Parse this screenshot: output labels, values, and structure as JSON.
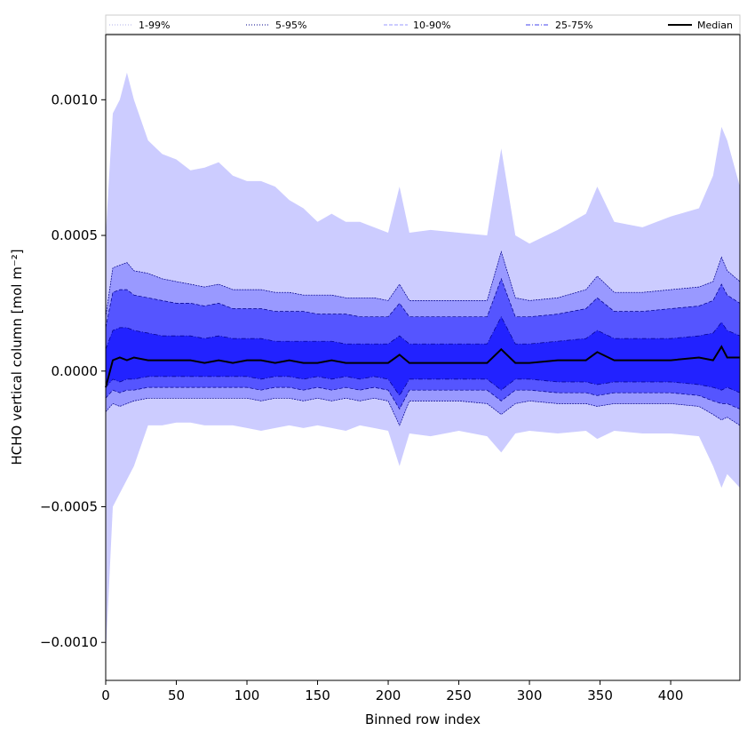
{
  "chart_data": {
    "type": "area",
    "xlabel": "Binned row index",
    "ylabel": "HCHO vertical column [mol m⁻²]",
    "xlim": [
      0,
      449
    ],
    "ylim": [
      -0.00114,
      0.00124
    ],
    "xticks": [
      0,
      50,
      100,
      150,
      200,
      250,
      300,
      350,
      400
    ],
    "yticks": [
      -0.001,
      -0.0005,
      0.0,
      0.0005,
      0.001
    ],
    "ytick_labels": [
      "−0.0010",
      "−0.0005",
      "0.0000",
      "0.0005",
      "0.0010"
    ],
    "legend_placement": "top",
    "legend": [
      {
        "label": "1-99%",
        "style": "dotted",
        "color": "#ccccff"
      },
      {
        "label": "5-95%",
        "style": "dotted",
        "color": "#00008b"
      },
      {
        "label": "10-90%",
        "style": "dashed",
        "color": "#9999ff"
      },
      {
        "label": "25-75%",
        "style": "dashdot",
        "color": "#4444ee"
      },
      {
        "label": "Median",
        "style": "solid",
        "color": "#000000"
      }
    ],
    "x": [
      0,
      5,
      10,
      15,
      20,
      30,
      40,
      50,
      60,
      70,
      80,
      90,
      100,
      110,
      120,
      130,
      140,
      150,
      160,
      170,
      180,
      190,
      200,
      208,
      215,
      230,
      250,
      270,
      280,
      290,
      300,
      320,
      340,
      348,
      360,
      380,
      400,
      420,
      430,
      436,
      440,
      449
    ],
    "series": [
      {
        "name": "1-99%",
        "color": "#ccccff",
        "lower": [
          -0.00105,
          -0.0005,
          -0.00045,
          -0.0004,
          -0.00035,
          -0.0002,
          -0.0002,
          -0.00019,
          -0.00019,
          -0.0002,
          -0.0002,
          -0.0002,
          -0.00021,
          -0.00022,
          -0.00021,
          -0.0002,
          -0.00021,
          -0.0002,
          -0.00021,
          -0.00022,
          -0.0002,
          -0.00021,
          -0.00022,
          -0.00035,
          -0.00023,
          -0.00024,
          -0.00022,
          -0.00024,
          -0.0003,
          -0.00023,
          -0.00022,
          -0.00023,
          -0.00022,
          -0.00025,
          -0.00022,
          -0.00023,
          -0.00023,
          -0.00024,
          -0.00035,
          -0.00043,
          -0.00038,
          -0.00043
        ],
        "upper": [
          0.0005,
          0.00095,
          0.001,
          0.0011,
          0.001,
          0.00085,
          0.0008,
          0.00078,
          0.00074,
          0.00075,
          0.00077,
          0.00072,
          0.0007,
          0.0007,
          0.00068,
          0.00063,
          0.0006,
          0.00055,
          0.00058,
          0.00055,
          0.00055,
          0.00053,
          0.00051,
          0.00068,
          0.00051,
          0.00052,
          0.00051,
          0.0005,
          0.00082,
          0.0005,
          0.00047,
          0.00052,
          0.00058,
          0.00068,
          0.00055,
          0.00053,
          0.00057,
          0.0006,
          0.00072,
          0.0009,
          0.00085,
          0.00068
        ]
      },
      {
        "name": "5-95%",
        "color": "#9999ff",
        "lower": [
          -0.00015,
          -0.00012,
          -0.00013,
          -0.00012,
          -0.00011,
          -0.0001,
          -0.0001,
          -0.0001,
          -0.0001,
          -0.0001,
          -0.0001,
          -0.0001,
          -0.0001,
          -0.00011,
          -0.0001,
          -0.0001,
          -0.00011,
          -0.0001,
          -0.00011,
          -0.0001,
          -0.00011,
          -0.0001,
          -0.00011,
          -0.0002,
          -0.00011,
          -0.00011,
          -0.00011,
          -0.00012,
          -0.00016,
          -0.00012,
          -0.00011,
          -0.00012,
          -0.00012,
          -0.00013,
          -0.00012,
          -0.00012,
          -0.00012,
          -0.00013,
          -0.00016,
          -0.00018,
          -0.00017,
          -0.0002
        ],
        "upper": [
          0.0002,
          0.00038,
          0.00039,
          0.0004,
          0.00037,
          0.00036,
          0.00034,
          0.00033,
          0.00032,
          0.00031,
          0.00032,
          0.0003,
          0.0003,
          0.0003,
          0.00029,
          0.00029,
          0.00028,
          0.00028,
          0.00028,
          0.00027,
          0.00027,
          0.00027,
          0.00026,
          0.00032,
          0.00026,
          0.00026,
          0.00026,
          0.00026,
          0.00044,
          0.00027,
          0.00026,
          0.00027,
          0.0003,
          0.00035,
          0.00029,
          0.00029,
          0.0003,
          0.00031,
          0.00033,
          0.00042,
          0.00037,
          0.00033
        ]
      },
      {
        "name": "10-90%",
        "color": "#5555ff",
        "lower": [
          -0.0001,
          -7e-05,
          -8e-05,
          -7e-05,
          -7e-05,
          -6e-05,
          -6e-05,
          -6e-05,
          -6e-05,
          -6e-05,
          -6e-05,
          -6e-05,
          -6e-05,
          -7e-05,
          -6e-05,
          -6e-05,
          -7e-05,
          -6e-05,
          -7e-05,
          -6e-05,
          -7e-05,
          -6e-05,
          -7e-05,
          -0.00014,
          -7e-05,
          -7e-05,
          -7e-05,
          -7e-05,
          -0.00011,
          -7e-05,
          -7e-05,
          -8e-05,
          -8e-05,
          -9e-05,
          -8e-05,
          -8e-05,
          -8e-05,
          -9e-05,
          -0.00011,
          -0.00012,
          -0.00012,
          -0.00014
        ],
        "upper": [
          0.00016,
          0.00029,
          0.0003,
          0.0003,
          0.00028,
          0.00027,
          0.00026,
          0.00025,
          0.00025,
          0.00024,
          0.00025,
          0.00023,
          0.00023,
          0.00023,
          0.00022,
          0.00022,
          0.00022,
          0.00021,
          0.00021,
          0.00021,
          0.0002,
          0.0002,
          0.0002,
          0.00025,
          0.0002,
          0.0002,
          0.0002,
          0.0002,
          0.00034,
          0.0002,
          0.0002,
          0.00021,
          0.00023,
          0.00027,
          0.00022,
          0.00022,
          0.00023,
          0.00024,
          0.00026,
          0.00032,
          0.00028,
          0.00025
        ]
      },
      {
        "name": "25-75%",
        "color": "#2222ff",
        "lower": [
          -6e-05,
          -3e-05,
          -4e-05,
          -3e-05,
          -3e-05,
          -2e-05,
          -2e-05,
          -2e-05,
          -2e-05,
          -2e-05,
          -2e-05,
          -2e-05,
          -2e-05,
          -3e-05,
          -2e-05,
          -2e-05,
          -3e-05,
          -2e-05,
          -3e-05,
          -2e-05,
          -3e-05,
          -2e-05,
          -3e-05,
          -9e-05,
          -3e-05,
          -3e-05,
          -3e-05,
          -3e-05,
          -7e-05,
          -3e-05,
          -3e-05,
          -4e-05,
          -4e-05,
          -5e-05,
          -4e-05,
          -4e-05,
          -4e-05,
          -5e-05,
          -6e-05,
          -7e-05,
          -6e-05,
          -8e-05
        ],
        "upper": [
          8e-05,
          0.00015,
          0.00016,
          0.00016,
          0.00015,
          0.00014,
          0.00013,
          0.00013,
          0.00013,
          0.00012,
          0.00013,
          0.00012,
          0.00012,
          0.00012,
          0.00011,
          0.00011,
          0.00011,
          0.00011,
          0.00011,
          0.0001,
          0.0001,
          0.0001,
          0.0001,
          0.00013,
          0.0001,
          0.0001,
          0.0001,
          0.0001,
          0.0002,
          0.0001,
          0.0001,
          0.00011,
          0.00012,
          0.00015,
          0.00012,
          0.00012,
          0.00012,
          0.00013,
          0.00014,
          0.00018,
          0.00015,
          0.00013
        ]
      },
      {
        "name": "Median",
        "color": "#000000",
        "values": [
          -6e-05,
          4e-05,
          5e-05,
          4e-05,
          5e-05,
          4e-05,
          4e-05,
          4e-05,
          4e-05,
          3e-05,
          4e-05,
          3e-05,
          4e-05,
          4e-05,
          3e-05,
          4e-05,
          3e-05,
          3e-05,
          4e-05,
          3e-05,
          3e-05,
          3e-05,
          3e-05,
          6e-05,
          3e-05,
          3e-05,
          3e-05,
          3e-05,
          8e-05,
          3e-05,
          3e-05,
          4e-05,
          4e-05,
          7e-05,
          4e-05,
          4e-05,
          4e-05,
          5e-05,
          4e-05,
          9e-05,
          5e-05,
          5e-05
        ]
      }
    ]
  }
}
